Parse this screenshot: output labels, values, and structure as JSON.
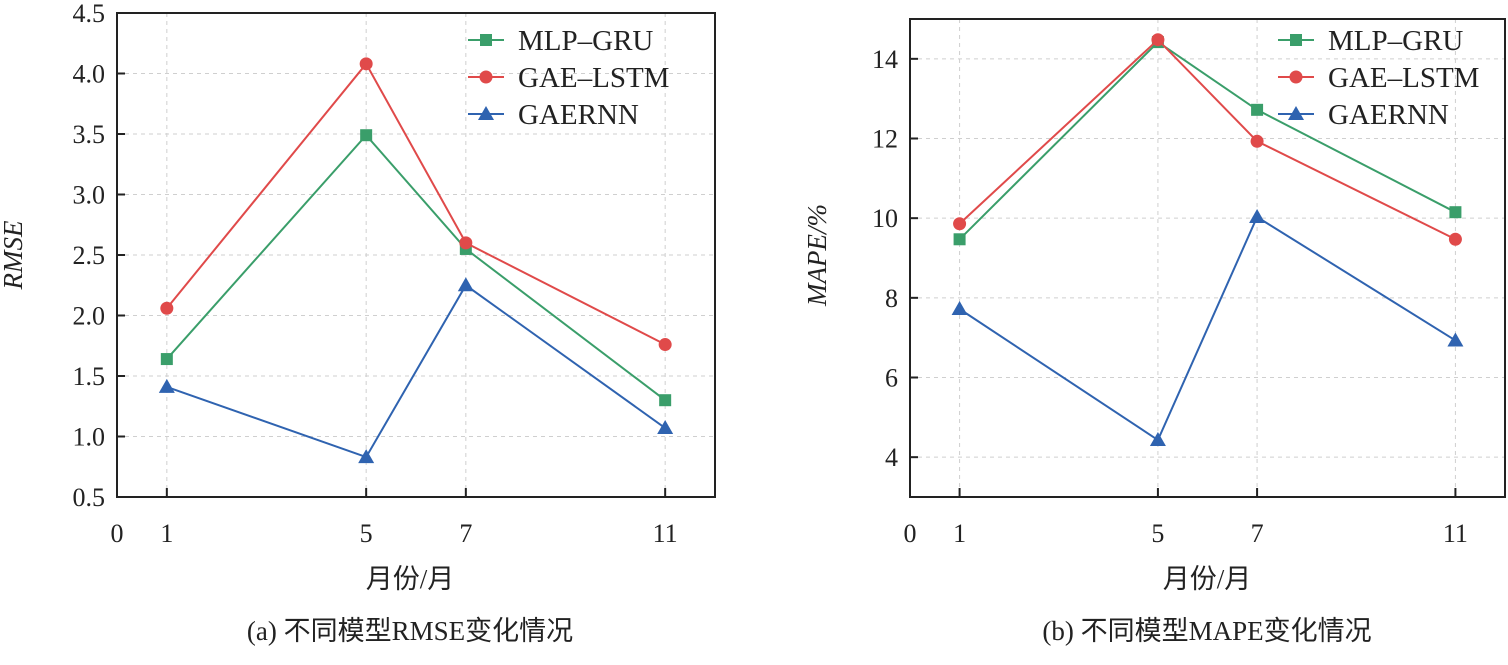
{
  "chart_data": [
    {
      "type": "line",
      "title": "(a) 不同模型RMSE变化情况",
      "xlabel": "月份/月",
      "ylabel": "RMSE",
      "x": [
        1,
        5,
        7,
        11
      ],
      "xlim": [
        0,
        12
      ],
      "ylim": [
        0.5,
        4.5
      ],
      "xticks": [
        "0",
        "1",
        "5",
        "7",
        "11"
      ],
      "xtick_values": [
        0,
        1,
        5,
        7,
        11
      ],
      "yticks": [
        "0.5",
        "1.0",
        "1.5",
        "2.0",
        "2.5",
        "3.0",
        "3.5",
        "4.0",
        "4.5"
      ],
      "ytick_values": [
        0.5,
        1.0,
        1.5,
        2.0,
        2.5,
        3.0,
        3.5,
        4.0,
        4.5
      ],
      "grid": true,
      "legend_position": "top-right",
      "series": [
        {
          "name": "MLP–GRU",
          "color": "#3a9e6a",
          "marker": "square",
          "values": [
            1.64,
            3.49,
            2.55,
            1.3
          ]
        },
        {
          "name": "GAE–LSTM",
          "color": "#e04a4a",
          "marker": "circle",
          "values": [
            2.06,
            4.08,
            2.6,
            1.76
          ]
        },
        {
          "name": "GAERNN",
          "color": "#2f63b0",
          "marker": "triangle",
          "values": [
            1.41,
            0.83,
            2.25,
            1.07
          ]
        }
      ]
    },
    {
      "type": "line",
      "title": "(b) 不同模型MAPE变化情况",
      "xlabel": "月份/月",
      "ylabel": "MAPE/%",
      "x": [
        1,
        5,
        7,
        11
      ],
      "xlim": [
        0,
        12
      ],
      "ylim": [
        3,
        15
      ],
      "xticks": [
        "0",
        "1",
        "5",
        "7",
        "11"
      ],
      "xtick_values": [
        0,
        1,
        5,
        7,
        11
      ],
      "yticks": [
        "4",
        "6",
        "8",
        "10",
        "12",
        "14"
      ],
      "ytick_values": [
        4,
        6,
        8,
        10,
        12,
        14
      ],
      "grid": true,
      "legend_position": "top-right",
      "series": [
        {
          "name": "MLP–GRU",
          "color": "#3a9e6a",
          "marker": "square",
          "values": [
            9.47,
            14.42,
            12.72,
            10.15
          ]
        },
        {
          "name": "GAE–LSTM",
          "color": "#e04a4a",
          "marker": "circle",
          "values": [
            9.86,
            14.48,
            11.93,
            9.47
          ]
        },
        {
          "name": "GAERNN",
          "color": "#2f63b0",
          "marker": "triangle",
          "values": [
            7.72,
            4.43,
            10.03,
            6.93
          ]
        }
      ]
    }
  ]
}
